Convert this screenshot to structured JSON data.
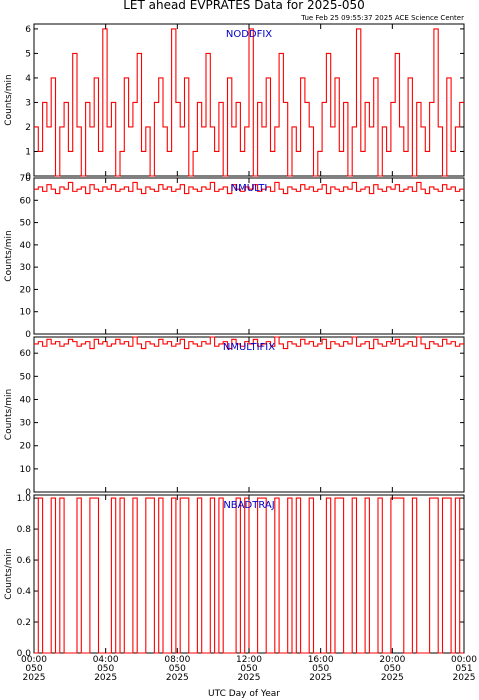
{
  "header": {
    "title": "LET ahead EVPRATES Data for 2025-050",
    "timestamp": "Tue Feb 25 09:55:37 2025 ACE Science Center"
  },
  "colors": {
    "series": "#ff0000",
    "label": "#0000cc"
  },
  "chart_data": [
    {
      "type": "line",
      "series": [
        {
          "name": "NODDFIX",
          "values": [
            2,
            1,
            3,
            2,
            4,
            0,
            2,
            3,
            1,
            5,
            2,
            0,
            3,
            2,
            4,
            1,
            6,
            2,
            3,
            0,
            1,
            4,
            2,
            3,
            5,
            1,
            2,
            0,
            3,
            4,
            2,
            1,
            6,
            3,
            2,
            4,
            0,
            1,
            3,
            2,
            5,
            2,
            1,
            3,
            0,
            4,
            2,
            3,
            1,
            2,
            6,
            0,
            3,
            2,
            4,
            1,
            2,
            5,
            3,
            0,
            2,
            1,
            4,
            3,
            2,
            0,
            1,
            3,
            5,
            2,
            4,
            1,
            3,
            0,
            2,
            6,
            1,
            3,
            2,
            4,
            0,
            2,
            1,
            3,
            5,
            2,
            1,
            4,
            0,
            3,
            2,
            1,
            3,
            6,
            2,
            0,
            4,
            1,
            2,
            3
          ]
        }
      ],
      "ylabel": "Counts/min",
      "ylim": [
        0,
        6.2
      ],
      "yticks": [
        0,
        1,
        2,
        3,
        4,
        5,
        6
      ]
    },
    {
      "type": "line",
      "series": [
        {
          "name": "NMULTI",
          "values": [
            65,
            66,
            64,
            67,
            65,
            63,
            66,
            65,
            68,
            64,
            65,
            66,
            63,
            67,
            65,
            64,
            66,
            65,
            67,
            64,
            65,
            66,
            64,
            68,
            65,
            63,
            66,
            65,
            64,
            67,
            65,
            66,
            64,
            65,
            67,
            63,
            66,
            65,
            64,
            66,
            65,
            68,
            64,
            65,
            66,
            63,
            67,
            65,
            64,
            66,
            65,
            67,
            64,
            65,
            66,
            64,
            68,
            65,
            63,
            66,
            65,
            64,
            67,
            65,
            66,
            64,
            65,
            67,
            63,
            66,
            65,
            64,
            66,
            65,
            68,
            64,
            65,
            66,
            63,
            67,
            65,
            64,
            66,
            65,
            67,
            64,
            65,
            66,
            64,
            68,
            65,
            63,
            66,
            65,
            64,
            67,
            65,
            66,
            64,
            65
          ]
        }
      ],
      "ylabel": "Counts/min",
      "ylim": [
        0,
        70
      ],
      "yticks": [
        0,
        10,
        20,
        30,
        40,
        50,
        60,
        70
      ]
    },
    {
      "type": "line",
      "series": [
        {
          "name": "NMULTIFIX",
          "values": [
            64,
            65,
            63,
            66,
            64,
            65,
            63,
            64,
            66,
            65,
            63,
            64,
            65,
            62,
            66,
            64,
            65,
            63,
            64,
            66,
            64,
            65,
            63,
            67,
            64,
            62,
            65,
            64,
            63,
            66,
            64,
            65,
            63,
            64,
            66,
            62,
            65,
            64,
            63,
            65,
            64,
            67,
            63,
            64,
            65,
            62,
            66,
            64,
            63,
            65,
            64,
            66,
            63,
            64,
            65,
            63,
            67,
            64,
            62,
            65,
            64,
            63,
            66,
            64,
            65,
            63,
            64,
            66,
            62,
            65,
            64,
            63,
            65,
            64,
            67,
            63,
            64,
            65,
            62,
            66,
            64,
            63,
            65,
            64,
            66,
            63,
            64,
            65,
            63,
            67,
            64,
            62,
            65,
            64,
            63,
            66,
            64,
            65,
            63,
            64
          ]
        }
      ],
      "ylabel": "Counts/min",
      "ylim": [
        0,
        67
      ],
      "yticks": [
        0,
        10,
        20,
        30,
        40,
        50,
        60
      ]
    },
    {
      "type": "line",
      "series": [
        {
          "name": "NBADTRAJ",
          "values": [
            0,
            1,
            0,
            0,
            1,
            0,
            1,
            0,
            0,
            0,
            1,
            0,
            0,
            1,
            1,
            0,
            0,
            0,
            1,
            0,
            1,
            0,
            0,
            1,
            0,
            0,
            1,
            1,
            0,
            1,
            0,
            0,
            1,
            0,
            1,
            1,
            0,
            0,
            1,
            0,
            0,
            1,
            0,
            1,
            0,
            0,
            0,
            1,
            0,
            1,
            0,
            0,
            1,
            1,
            0,
            0,
            1,
            0,
            0,
            1,
            0,
            1,
            0,
            0,
            1,
            0,
            0,
            0,
            1,
            0,
            1,
            1,
            0,
            0,
            1,
            0,
            0,
            1,
            0,
            0,
            1,
            0,
            0,
            1,
            1,
            1,
            0,
            0,
            1,
            0,
            0,
            0,
            1,
            1,
            0,
            1,
            1,
            0,
            1,
            0
          ]
        }
      ],
      "ylabel": "Counts/min",
      "ylim": [
        0,
        1.02
      ],
      "yticks": [
        "0.0",
        "0.2",
        "0.4",
        "0.6",
        "0.8",
        "1.0"
      ]
    }
  ],
  "x_axis": {
    "xlabel": "UTC Day of Year",
    "ticks": [
      {
        "time": "00:00",
        "doy": "050",
        "year": "2025"
      },
      {
        "time": "04:00",
        "doy": "050",
        "year": "2025"
      },
      {
        "time": "08:00",
        "doy": "050",
        "year": "2025"
      },
      {
        "time": "12:00",
        "doy": "050",
        "year": "2025"
      },
      {
        "time": "16:00",
        "doy": "050",
        "year": "2025"
      },
      {
        "time": "20:00",
        "doy": "050",
        "year": "2025"
      },
      {
        "time": "00:00",
        "doy": "051",
        "year": "2025"
      }
    ]
  }
}
